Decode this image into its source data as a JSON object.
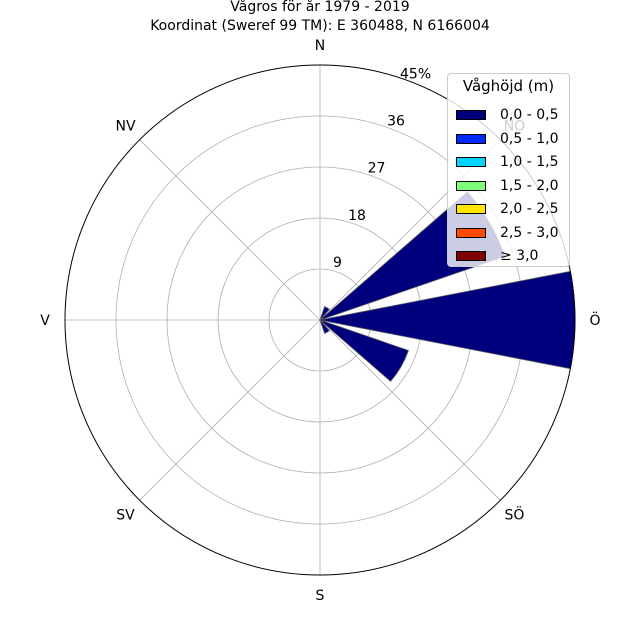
{
  "title": "Vågros för år 1979 - 2019",
  "subtitle": "Koordinat (Sweref 99 TM): E 360488, N 6166004",
  "chart_data": {
    "type": "polar-bar",
    "directions": [
      "N",
      "NO",
      "Ö",
      "SÖ",
      "S",
      "SV",
      "V",
      "NV"
    ],
    "direction_labels": {
      "N": "N",
      "NO": "NO",
      "E": "Ö",
      "SE": "SÖ",
      "S": "S",
      "SW": "SV",
      "W": "V",
      "NW": "NV"
    },
    "radial_ticks": [
      "9",
      "18",
      "27",
      "36",
      "45%"
    ],
    "radial_tick_values": [
      9,
      18,
      27,
      36,
      45
    ],
    "rmax": 45,
    "bins_deg": [
      {
        "angle": 60,
        "value": 34.5,
        "series": "0,0 - 0,5"
      },
      {
        "angle": 90,
        "value": 45,
        "series": "0,0 - 0,5"
      },
      {
        "angle": 120,
        "value": 16.5,
        "series": "0,0 - 0,5"
      },
      {
        "angle": 30,
        "value": 2.5,
        "series": "0,0 - 0,5"
      },
      {
        "angle": 150,
        "value": 2.5,
        "series": "0,0 - 0,5"
      }
    ],
    "legend": {
      "title": "Våghöjd (m)",
      "items": [
        {
          "label": "0,0 - 0,5",
          "color": "#00007f"
        },
        {
          "label": "0,5 - 1,0",
          "color": "#0028ff"
        },
        {
          "label": "1,0 - 1,5",
          "color": "#00d4ff"
        },
        {
          "label": "1,5 - 2,0",
          "color": "#7dff7a"
        },
        {
          "label": "2,0 - 2,5",
          "color": "#ffe500"
        },
        {
          "label": "2,5 - 3,0",
          "color": "#ff4a00"
        },
        {
          "label": "≥ 3,0",
          "color": "#7f0000"
        }
      ]
    }
  }
}
